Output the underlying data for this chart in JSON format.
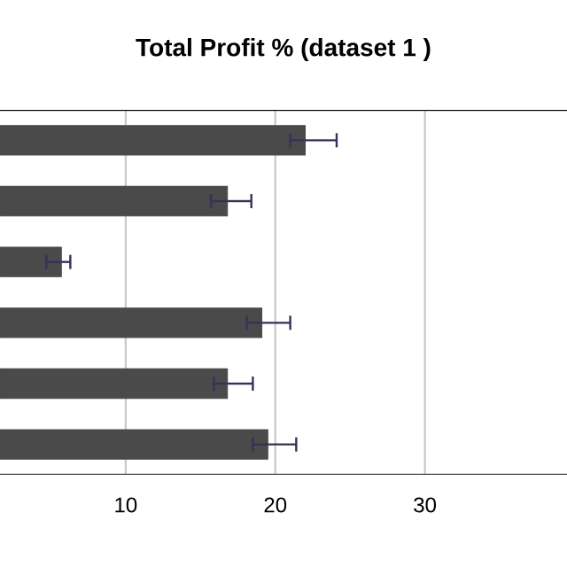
{
  "chart_data": {
    "type": "bar",
    "orientation": "horizontal",
    "title": "Total Profit % (dataset 1 )",
    "categories": [
      null,
      null,
      null,
      null,
      null,
      null
    ],
    "values": [
      22.0,
      16.8,
      5.7,
      19.1,
      16.8,
      19.5
    ],
    "errors": [
      [
        21.0,
        24.1
      ],
      [
        15.7,
        18.4
      ],
      [
        4.7,
        6.3
      ],
      [
        18.1,
        21.0
      ],
      [
        15.9,
        18.5
      ],
      [
        18.5,
        21.4
      ]
    ],
    "color": "#4a4a4a",
    "xlim": [
      1.6,
      39.5
    ],
    "xticks": [
      10,
      20,
      30
    ],
    "grid": "x"
  }
}
